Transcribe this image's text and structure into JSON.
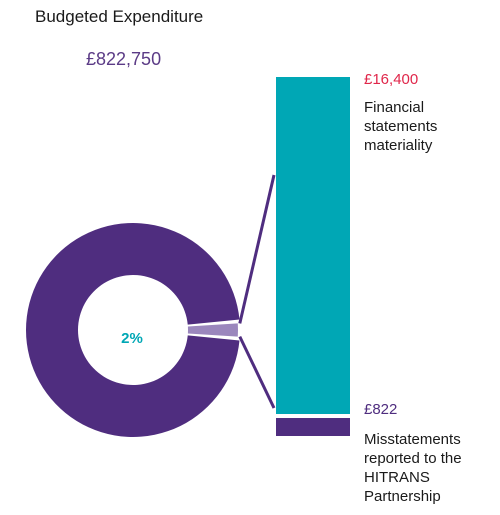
{
  "chart_data": {
    "type": "pie",
    "title": "Budgeted Expenditure",
    "total_label": "£822,750",
    "total_value": 822750,
    "donut": {
      "slices": [
        {
          "name": "",
          "value": 98
        },
        {
          "name": "",
          "value": 2
        }
      ],
      "center_label": "2%"
    },
    "bar": {
      "segments": [
        {
          "value": 16400,
          "value_label": "£16,400",
          "label": "Financial statements materiality"
        },
        {
          "value": 822,
          "value_label": "£822",
          "label": "Misstatements reported to the HITRANS Partnership"
        }
      ]
    },
    "colors": {
      "donut_main": "#4f2d7f",
      "donut_slice": "#9b87bd",
      "bar_main": "#00a7b5",
      "bar_small": "#4f2d7f",
      "connector": "#4f2d7f",
      "top_value": "#e0264a",
      "bottom_value": "#4f2d7f",
      "center_label": "#00a7b5"
    }
  }
}
